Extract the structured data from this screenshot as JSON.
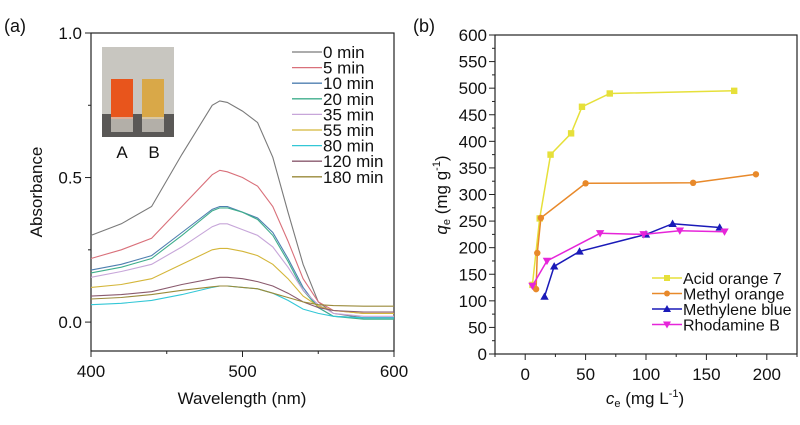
{
  "chart_data": [
    {
      "panel_label": "(a)",
      "type": "line",
      "xlabel": "Wavelength (nm)",
      "ylabel": "Absorbance",
      "xlim": [
        400,
        600
      ],
      "ylim": [
        -0.1,
        1.0
      ],
      "xticks": [
        "400",
        "500",
        "600"
      ],
      "yticks": [
        "0.0",
        "0.5",
        "1.0"
      ],
      "xtick_values": [
        400,
        500,
        600
      ],
      "ytick_values": [
        0.0,
        0.5,
        1.0
      ],
      "legend_position": "top-right",
      "inset": {
        "labels": [
          "A",
          "B"
        ],
        "colors": [
          "#e8551c",
          "#d9a848"
        ]
      },
      "x": [
        400,
        420,
        440,
        460,
        480,
        485,
        490,
        500,
        510,
        520,
        530,
        540,
        550,
        560,
        580,
        600
      ],
      "series": [
        {
          "name": "0 min",
          "color": "#7a7a7a",
          "values": [
            0.3,
            0.34,
            0.4,
            0.58,
            0.75,
            0.765,
            0.76,
            0.73,
            0.69,
            0.57,
            0.38,
            0.2,
            0.07,
            0.03,
            0.015,
            0.015
          ]
        },
        {
          "name": "5 min",
          "color": "#d9707a",
          "values": [
            0.22,
            0.25,
            0.29,
            0.4,
            0.51,
            0.525,
            0.52,
            0.5,
            0.47,
            0.4,
            0.28,
            0.15,
            0.07,
            0.04,
            0.03,
            0.03
          ]
        },
        {
          "name": "10 min",
          "color": "#4f7fb0",
          "values": [
            0.18,
            0.2,
            0.23,
            0.31,
            0.39,
            0.4,
            0.4,
            0.38,
            0.36,
            0.31,
            0.22,
            0.12,
            0.05,
            0.02,
            0.015,
            0.015
          ]
        },
        {
          "name": "20 min",
          "color": "#3fae8c",
          "values": [
            0.17,
            0.19,
            0.22,
            0.3,
            0.385,
            0.395,
            0.395,
            0.38,
            0.355,
            0.3,
            0.21,
            0.11,
            0.05,
            0.02,
            0.01,
            0.01
          ]
        },
        {
          "name": "35 min",
          "color": "#c7a6d9",
          "values": [
            0.155,
            0.175,
            0.2,
            0.26,
            0.33,
            0.34,
            0.34,
            0.32,
            0.3,
            0.26,
            0.19,
            0.11,
            0.06,
            0.03,
            0.02,
            0.02
          ]
        },
        {
          "name": "55 min",
          "color": "#d4b63a",
          "values": [
            0.12,
            0.13,
            0.15,
            0.2,
            0.25,
            0.255,
            0.255,
            0.245,
            0.23,
            0.2,
            0.15,
            0.09,
            0.055,
            0.04,
            0.03,
            0.03
          ]
        },
        {
          "name": "80 min",
          "color": "#33c7d6",
          "values": [
            0.06,
            0.065,
            0.075,
            0.095,
            0.12,
            0.125,
            0.125,
            0.12,
            0.115,
            0.1,
            0.075,
            0.045,
            0.03,
            0.02,
            0.015,
            0.015
          ]
        },
        {
          "name": "120 min",
          "color": "#8a5a6e",
          "values": [
            0.09,
            0.095,
            0.105,
            0.13,
            0.15,
            0.155,
            0.155,
            0.15,
            0.14,
            0.125,
            0.1,
            0.07,
            0.05,
            0.04,
            0.035,
            0.035
          ]
        },
        {
          "name": "180 min",
          "color": "#9a8a3a",
          "values": [
            0.08,
            0.085,
            0.095,
            0.11,
            0.122,
            0.125,
            0.125,
            0.12,
            0.115,
            0.1,
            0.085,
            0.07,
            0.06,
            0.057,
            0.055,
            0.055
          ]
        }
      ]
    },
    {
      "panel_label": "(b)",
      "type": "line",
      "xlabel": {
        "var": "c",
        "sub": "e",
        "unit": " (mg L",
        "sup": "-1",
        "close": ")"
      },
      "ylabel": {
        "var": "q",
        "sub": "e",
        "unit": " (mg g",
        "sup": "-1",
        "close": ")"
      },
      "xlim": [
        -25,
        225
      ],
      "ylim": [
        0,
        600
      ],
      "xticks": [
        "0",
        "50",
        "100",
        "150",
        "200"
      ],
      "yticks": [
        "0",
        "50",
        "100",
        "150",
        "200",
        "250",
        "300",
        "350",
        "400",
        "450",
        "500",
        "550",
        "600"
      ],
      "xtick_values": [
        0,
        50,
        100,
        150,
        200
      ],
      "ytick_values": [
        0,
        50,
        100,
        150,
        200,
        250,
        300,
        350,
        400,
        450,
        500,
        550,
        600
      ],
      "legend_position": "bottom-right",
      "series": [
        {
          "name": "Acid orange 7",
          "color": "#e6e03a",
          "marker": "square",
          "points": [
            [
              6,
              130
            ],
            [
              12,
              255
            ],
            [
              21,
              375
            ],
            [
              38,
              415
            ],
            [
              47,
              465
            ],
            [
              70,
              490
            ],
            [
              173,
              495
            ]
          ]
        },
        {
          "name": "Methyl orange",
          "color": "#e8892a",
          "marker": "circle",
          "points": [
            [
              9,
              122
            ],
            [
              10,
              190
            ],
            [
              13,
              256
            ],
            [
              50,
              321
            ],
            [
              139,
              322
            ],
            [
              191,
              338
            ]
          ]
        },
        {
          "name": "Methylene blue",
          "color": "#1a1ab8",
          "marker": "triangle-up",
          "points": [
            [
              16,
              108
            ],
            [
              24,
              165
            ],
            [
              45,
              193
            ],
            [
              100,
              225
            ],
            [
              122,
              245
            ],
            [
              161,
              238
            ]
          ]
        },
        {
          "name": "Rhodamine B",
          "color": "#e625d9",
          "marker": "triangle-down",
          "points": [
            [
              6,
              128
            ],
            [
              18,
              175
            ],
            [
              62,
              227
            ],
            [
              98,
              225
            ],
            [
              128,
              232
            ],
            [
              165,
              230
            ]
          ]
        }
      ]
    }
  ]
}
